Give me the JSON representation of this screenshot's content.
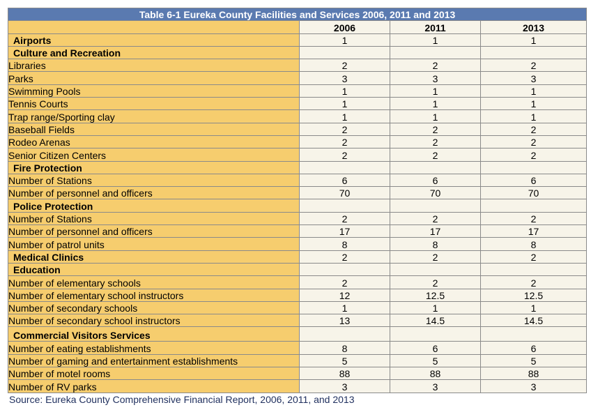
{
  "table": {
    "title": "Table 6-1 Eureka County Facilities and Services 2006, 2011 and 2013",
    "columns": [
      "",
      "2006",
      "2011",
      "2013"
    ],
    "rows": [
      {
        "label": "Airports",
        "section": true,
        "values": [
          "1",
          "1",
          "1"
        ]
      },
      {
        "label": "Culture and Recreation",
        "section": true,
        "values": [
          "",
          "",
          ""
        ]
      },
      {
        "label": "Libraries",
        "section": false,
        "values": [
          "2",
          "2",
          "2"
        ]
      },
      {
        "label": "Parks",
        "section": false,
        "values": [
          "3",
          "3",
          "3"
        ]
      },
      {
        "label": "Swimming Pools",
        "section": false,
        "values": [
          "1",
          "1",
          "1"
        ]
      },
      {
        "label": "Tennis Courts",
        "section": false,
        "values": [
          "1",
          "1",
          "1"
        ]
      },
      {
        "label": "Trap range/Sporting clay",
        "section": false,
        "values": [
          "1",
          "1",
          "1"
        ]
      },
      {
        "label": "Baseball Fields",
        "section": false,
        "values": [
          "2",
          "2",
          "2"
        ]
      },
      {
        "label": "Rodeo Arenas",
        "section": false,
        "values": [
          "2",
          "2",
          "2"
        ]
      },
      {
        "label": "Senior Citizen Centers",
        "section": false,
        "values": [
          "2",
          "2",
          "2"
        ]
      },
      {
        "label": "Fire Protection",
        "section": true,
        "values": [
          "",
          "",
          ""
        ]
      },
      {
        "label": "Number of Stations",
        "section": false,
        "values": [
          "6",
          "6",
          "6"
        ]
      },
      {
        "label": "Number of personnel and officers",
        "section": false,
        "values": [
          "70",
          "70",
          "70"
        ]
      },
      {
        "label": "Police Protection",
        "section": true,
        "values": [
          "",
          "",
          ""
        ]
      },
      {
        "label": "Number of Stations",
        "section": false,
        "values": [
          "2",
          "2",
          "2"
        ]
      },
      {
        "label": "Number of personnel and officers",
        "section": false,
        "values": [
          "17",
          "17",
          "17"
        ]
      },
      {
        "label": "Number of patrol units",
        "section": false,
        "values": [
          "8",
          "8",
          "8"
        ]
      },
      {
        "label": "Medical Clinics",
        "section": true,
        "values": [
          "2",
          "2",
          "2"
        ]
      },
      {
        "label": "Education",
        "section": true,
        "values": [
          "",
          "",
          ""
        ]
      },
      {
        "label": "Number of elementary schools",
        "section": false,
        "values": [
          "2",
          "2",
          "2"
        ]
      },
      {
        "label": "Number of elementary school instructors",
        "section": false,
        "values": [
          "12",
          "12.5",
          "12.5"
        ]
      },
      {
        "label": "Number of secondary schools",
        "section": false,
        "values": [
          "1",
          "1",
          "1"
        ]
      },
      {
        "label": "Number of secondary school instructors",
        "section": false,
        "values": [
          "13",
          "14.5",
          "14.5"
        ]
      },
      {
        "label": "Commercial Visitors Services",
        "section": true,
        "tall": true,
        "values": [
          "",
          "",
          ""
        ]
      },
      {
        "label": "Number of eating establishments",
        "section": false,
        "values": [
          "8",
          "6",
          "6"
        ]
      },
      {
        "label": "Number of gaming and entertainment establishments",
        "section": false,
        "values": [
          "5",
          "5",
          "5"
        ]
      },
      {
        "label": "Number of motel rooms",
        "section": false,
        "values": [
          "88",
          "88",
          "88"
        ]
      },
      {
        "label": "Number of RV parks",
        "section": false,
        "values": [
          "3",
          "3",
          "3"
        ]
      }
    ]
  },
  "source": "Source: Eureka County Comprehensive Financial Report, 2006, 2011, and 2013",
  "colors": {
    "title_bg": "#5a7ab0",
    "label_bg": "#f6cd6e",
    "value_bg": "#f7f4e9",
    "source_text": "#1f2f5e"
  }
}
